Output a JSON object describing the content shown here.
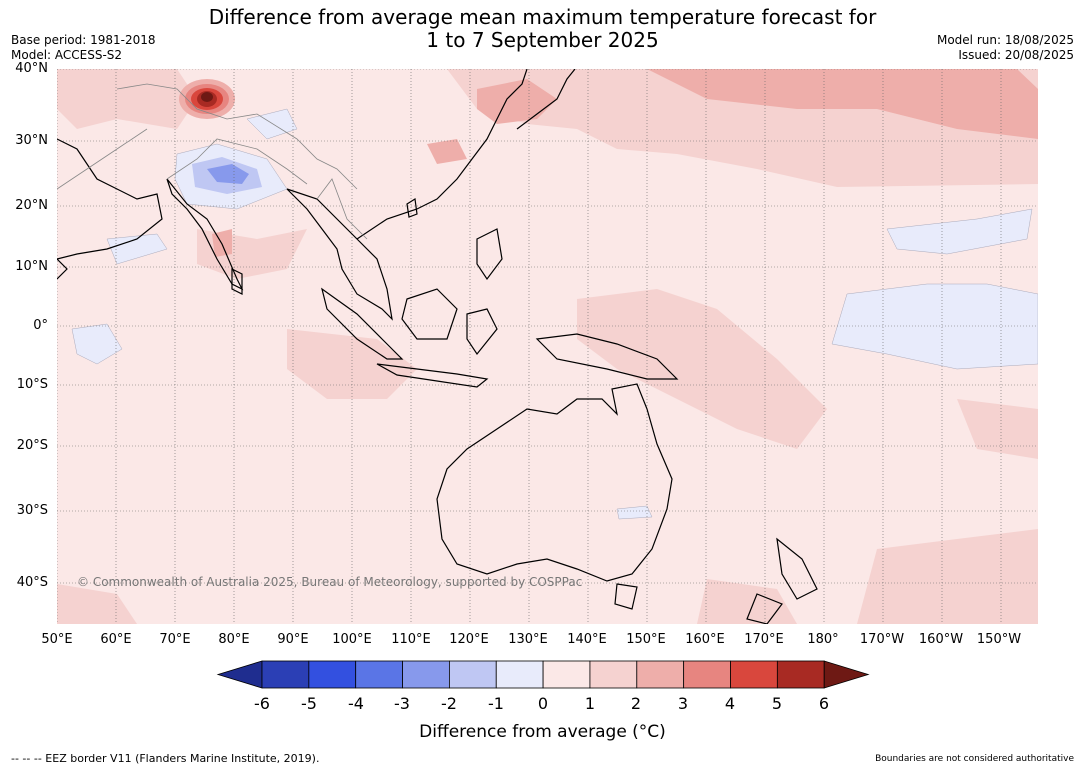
{
  "header": {
    "title_line1": "Difference from average mean maximum temperature forecast for",
    "title_line2": "1 to 7 September 2025",
    "base_period": "Base period: 1981-2018",
    "model": "Model: ACCESS-S2",
    "model_run": "Model run: 18/08/2025",
    "issued": "Issued: 20/08/2025"
  },
  "map": {
    "lat_labels": [
      "40°N",
      "30°N",
      "20°N",
      "10°N",
      "0°",
      "10°S",
      "20°S",
      "30°S",
      "40°S"
    ],
    "lon_labels": [
      "50°E",
      "60°E",
      "70°E",
      "80°E",
      "90°E",
      "100°E",
      "110°E",
      "120°E",
      "130°E",
      "140°E",
      "150°E",
      "160°E",
      "170°E",
      "180°",
      "170°W",
      "160°W",
      "150°W"
    ],
    "copyright": "© Commonwealth of Australia 2025, Bureau of Meteorology, supported by COSPPac",
    "background_color": "#fbe8e7"
  },
  "colorbar": {
    "ticks": [
      "-6",
      "-5",
      "-4",
      "-3",
      "-2",
      "-1",
      "0",
      "1",
      "2",
      "3",
      "4",
      "5",
      "6"
    ],
    "colors": [
      "#1f2d8f",
      "#2b3fb5",
      "#3350e0",
      "#5a75e6",
      "#8799ec",
      "#bfc7f3",
      "#e8ebfb",
      "#fbe8e7",
      "#f5d2d0",
      "#eeaeaa",
      "#e78580",
      "#d9473d",
      "#a82a23",
      "#6e1914"
    ],
    "label": "Difference from average (°C)"
  },
  "footer": {
    "eez_note": "--  --  -- EEZ border V11 (Flanders Marine Institute, 2019).",
    "boundaries_note": "Boundaries are not considered authoritative"
  }
}
